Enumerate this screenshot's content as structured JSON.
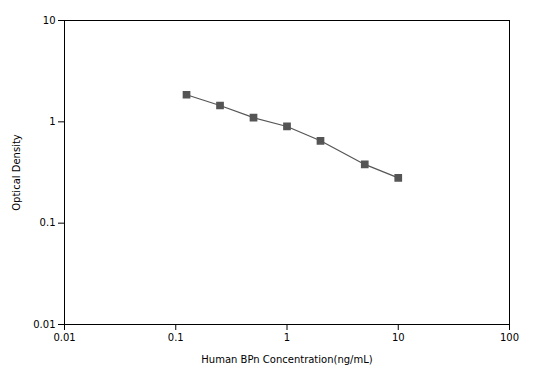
{
  "chart_data": {
    "type": "line",
    "x": [
      0.125,
      0.25,
      0.5,
      1.0,
      2.0,
      5.0,
      10.0
    ],
    "values": [
      1.85,
      1.45,
      1.1,
      0.9,
      0.65,
      0.38,
      0.28
    ],
    "xlabel": "Human BPn Concentration(ng/mL)",
    "ylabel": "Optical Density",
    "xlim": [
      0.01,
      100
    ],
    "ylim": [
      0.01,
      10
    ],
    "xticks": [
      0.01,
      0.1,
      1,
      10,
      100
    ],
    "yticks": [
      0.01,
      0.1,
      1,
      10
    ],
    "log": true,
    "grid": false,
    "color": "#555555",
    "marker": "square"
  }
}
